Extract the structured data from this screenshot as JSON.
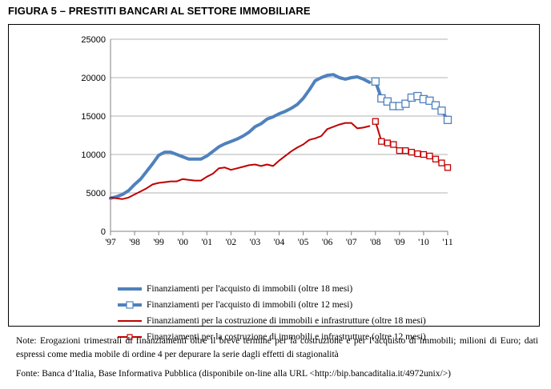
{
  "figure_title": "FIGURA 5 – PRESTITI BANCARI AL SETTORE IMMOBILIARE",
  "note": "Note: Erogazioni trimestrali di finanziamenti oltre il breve termine per la costruzione e per l’acquisto di immobili; milioni di Euro; dati espressi come media mobile di ordine 4 per depurare la serie dagli effetti di stagionalità",
  "source": "Fonte: Banca d’Italia, Base Informativa Pubblica (disponibile on-line alla URL <http://bip.bancaditalia.it/4972unix/>)",
  "colors": {
    "blue": "#4F81BD",
    "red": "#C00000",
    "axis": "#808080"
  },
  "chart_data": {
    "type": "line",
    "title": "",
    "xlabel": "",
    "ylabel": "",
    "ylim": [
      0,
      25000
    ],
    "yticks": [
      0,
      5000,
      10000,
      15000,
      20000,
      25000
    ],
    "xticks": [
      {
        "label": "'97",
        "value": 1997
      },
      {
        "label": "'98",
        "value": 1998
      },
      {
        "label": "'99",
        "value": 1999
      },
      {
        "label": "'00",
        "value": 2000
      },
      {
        "label": "'01",
        "value": 2001
      },
      {
        "label": "'02",
        "value": 2002
      },
      {
        "label": "'03",
        "value": 2003
      },
      {
        "label": "'04",
        "value": 2004
      },
      {
        "label": "'05",
        "value": 2005
      },
      {
        "label": "'06",
        "value": 2006
      },
      {
        "label": "'07",
        "value": 2007
      },
      {
        "label": "'08",
        "value": 2008
      },
      {
        "label": "'09",
        "value": 2009
      },
      {
        "label": "'10",
        "value": 2010
      },
      {
        "label": "'11",
        "value": 2011
      }
    ],
    "xlim": [
      1997,
      2011
    ],
    "grid": "horizontal",
    "legend_position": "bottom",
    "series": [
      {
        "name": "Finanziamenti per l'acquisto di immobili (oltre 18 mesi)",
        "color": "#4F81BD",
        "style": "thick",
        "marker": "none",
        "x": [
          1997.0,
          1997.25,
          1997.5,
          1997.75,
          1998.0,
          1998.25,
          1998.5,
          1998.75,
          1999.0,
          1999.25,
          1999.5,
          1999.75,
          2000.0,
          2000.25,
          2000.5,
          2000.75,
          2001.0,
          2001.25,
          2001.5,
          2001.75,
          2002.0,
          2002.25,
          2002.5,
          2002.75,
          2003.0,
          2003.25,
          2003.5,
          2003.75,
          2004.0,
          2004.25,
          2004.5,
          2004.75,
          2005.0,
          2005.25,
          2005.5,
          2005.75,
          2006.0,
          2006.25,
          2006.5,
          2006.75,
          2007.0,
          2007.25,
          2007.5,
          2007.75
        ],
        "values": [
          4300,
          4500,
          4800,
          5300,
          6100,
          6800,
          7800,
          8800,
          9900,
          10300,
          10300,
          10000,
          9700,
          9400,
          9400,
          9400,
          9800,
          10400,
          11000,
          11400,
          11700,
          12000,
          12400,
          12900,
          13600,
          14000,
          14600,
          14900,
          15300,
          15600,
          16000,
          16500,
          17300,
          18400,
          19600,
          20000,
          20300,
          20400,
          20000,
          19800,
          20000,
          20100,
          19800,
          19400
        ]
      },
      {
        "name": "Finanziamenti per l'acquisto di immobili (oltre 12 mesi)",
        "color": "#4F81BD",
        "style": "thick",
        "marker": "square",
        "x": [
          2008.0,
          2008.25,
          2008.5,
          2008.75,
          2009.0,
          2009.25,
          2009.5,
          2009.75,
          2010.0,
          2010.25,
          2010.5,
          2010.75,
          2011.0
        ],
        "values": [
          19500,
          17300,
          16900,
          16300,
          16300,
          16600,
          17400,
          17600,
          17200,
          17000,
          16400,
          15700,
          14500
        ]
      },
      {
        "name": "Finanziamenti per la costruzione di immobili e infrastrutture (oltre 18 mesi)",
        "color": "#C00000",
        "style": "thin",
        "marker": "none",
        "x": [
          1997.0,
          1997.25,
          1997.5,
          1997.75,
          1998.0,
          1998.25,
          1998.5,
          1998.75,
          1999.0,
          1999.25,
          1999.5,
          1999.75,
          2000.0,
          2000.25,
          2000.5,
          2000.75,
          2001.0,
          2001.25,
          2001.5,
          2001.75,
          2002.0,
          2002.25,
          2002.5,
          2002.75,
          2003.0,
          2003.25,
          2003.5,
          2003.75,
          2004.0,
          2004.25,
          2004.5,
          2004.75,
          2005.0,
          2005.25,
          2005.5,
          2005.75,
          2006.0,
          2006.25,
          2006.5,
          2006.75,
          2007.0,
          2007.25,
          2007.5,
          2007.75
        ],
        "values": [
          4400,
          4300,
          4200,
          4400,
          4800,
          5200,
          5600,
          6100,
          6300,
          6400,
          6500,
          6500,
          6800,
          6700,
          6600,
          6600,
          7100,
          7500,
          8200,
          8300,
          8000,
          8200,
          8400,
          8600,
          8700,
          8500,
          8700,
          8500,
          9200,
          9800,
          10400,
          10900,
          11300,
          11900,
          12100,
          12400,
          13300,
          13600,
          13900,
          14100,
          14100,
          13400,
          13500,
          13700
        ]
      },
      {
        "name": "Finanziamenti per la costruzione di immobili e infrastrutture (oltre 12 mesi)",
        "color": "#C00000",
        "style": "thin",
        "marker": "square",
        "x": [
          2008.0,
          2008.25,
          2008.5,
          2008.75,
          2009.0,
          2009.25,
          2009.5,
          2009.75,
          2010.0,
          2010.25,
          2010.5,
          2010.75,
          2011.0
        ],
        "values": [
          14300,
          11700,
          11500,
          11300,
          10500,
          10500,
          10300,
          10100,
          10000,
          9800,
          9400,
          8900,
          8300
        ]
      }
    ]
  }
}
